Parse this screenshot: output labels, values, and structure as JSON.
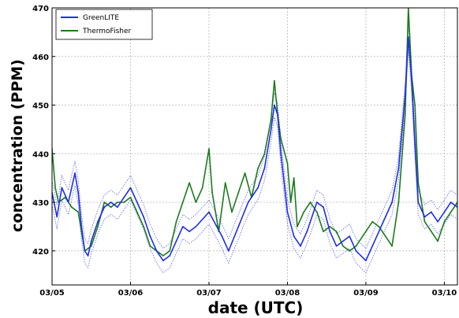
{
  "chart_data": {
    "type": "line",
    "title": "",
    "xlabel": "date (UTC)",
    "ylabel": "concentration (PPM)",
    "x_ticks": [
      "03/05",
      "03/06",
      "03/07",
      "03/08",
      "03/09",
      "03/10"
    ],
    "xlim": [
      "03/05 00:00",
      "03/10 04:00"
    ],
    "y_ticks": [
      420,
      430,
      440,
      450,
      460,
      470
    ],
    "ylim": [
      413,
      470
    ],
    "grid": true,
    "legend_position": "top-left",
    "series": [
      {
        "name": "GreenLITE",
        "color": "#1f2ee6",
        "line_style": "solid with dotted uncertainty band",
        "band_width_ppm": 2.5,
        "points": [
          [
            "03/05 00:00",
            432
          ],
          [
            "03/05 01:30",
            427
          ],
          [
            "03/05 03:00",
            433
          ],
          [
            "03/05 05:00",
            430
          ],
          [
            "03/05 07:00",
            436
          ],
          [
            "03/05 08:00",
            432
          ],
          [
            "03/05 09:00",
            425
          ],
          [
            "03/05 10:00",
            420
          ],
          [
            "03/05 11:00",
            419
          ],
          [
            "03/05 12:00",
            422
          ],
          [
            "03/05 14:00",
            426
          ],
          [
            "03/05 16:00",
            429
          ],
          [
            "03/05 18:00",
            430
          ],
          [
            "03/05 20:00",
            429
          ],
          [
            "03/05 22:00",
            431
          ],
          [
            "03/06 00:00",
            433
          ],
          [
            "03/06 02:00",
            430
          ],
          [
            "03/06 04:00",
            427
          ],
          [
            "03/06 06:00",
            423
          ],
          [
            "03/06 08:00",
            420
          ],
          [
            "03/06 10:00",
            418
          ],
          [
            "03/06 12:00",
            419
          ],
          [
            "03/06 14:00",
            422
          ],
          [
            "03/06 16:00",
            425
          ],
          [
            "03/06 18:00",
            424
          ],
          [
            "03/06 20:00",
            425
          ],
          [
            "03/07 00:00",
            428
          ],
          [
            "03/07 04:00",
            423
          ],
          [
            "03/07 06:00",
            420
          ],
          [
            "03/07 09:00",
            425
          ],
          [
            "03/07 12:00",
            430
          ],
          [
            "03/07 15:00",
            433
          ],
          [
            "03/07 17:00",
            437
          ],
          [
            "03/07 19:00",
            445
          ],
          [
            "03/07 20:00",
            450
          ],
          [
            "03/07 21:00",
            448
          ],
          [
            "03/07 22:00",
            440
          ],
          [
            "03/08 00:00",
            428
          ],
          [
            "03/08 02:00",
            423
          ],
          [
            "03/08 04:00",
            421
          ],
          [
            "03/08 06:00",
            424
          ],
          [
            "03/08 08:00",
            428
          ],
          [
            "03/08 09:00",
            430
          ],
          [
            "03/08 11:00",
            429
          ],
          [
            "03/08 13:00",
            424
          ],
          [
            "03/08 15:00",
            421
          ],
          [
            "03/08 17:00",
            422
          ],
          [
            "03/08 19:00",
            423
          ],
          [
            "03/08 21:00",
            420
          ],
          [
            "03/09 00:00",
            418
          ],
          [
            "03/09 02:00",
            421
          ],
          [
            "03/09 04:00",
            424
          ],
          [
            "03/09 06:00",
            427
          ],
          [
            "03/09 08:00",
            430
          ],
          [
            "03/09 10:00",
            437
          ],
          [
            "03/09 12:00",
            452
          ],
          [
            "03/09 13:00",
            464
          ],
          [
            "03/09 14:00",
            455
          ],
          [
            "03/09 15:00",
            442
          ],
          [
            "03/09 16:00",
            430
          ],
          [
            "03/09 18:00",
            427
          ],
          [
            "03/09 20:00",
            428
          ],
          [
            "03/09 22:00",
            426
          ],
          [
            "03/10 00:00",
            428
          ],
          [
            "03/10 02:00",
            430
          ],
          [
            "03/10 04:00",
            429
          ]
        ]
      },
      {
        "name": "ThermoFisher",
        "color": "#1d7a1d",
        "line_style": "solid",
        "points": [
          [
            "03/05 00:00",
            441
          ],
          [
            "03/05 01:00",
            433
          ],
          [
            "03/05 02:00",
            430
          ],
          [
            "03/05 04:00",
            431
          ],
          [
            "03/05 06:00",
            429
          ],
          [
            "03/05 08:00",
            428
          ],
          [
            "03/05 09:00",
            424
          ],
          [
            "03/05 10:00",
            420
          ],
          [
            "03/05 12:00",
            421
          ],
          [
            "03/05 14:00",
            425
          ],
          [
            "03/05 16:00",
            430
          ],
          [
            "03/05 18:00",
            429
          ],
          [
            "03/05 20:00",
            430
          ],
          [
            "03/05 22:00",
            430
          ],
          [
            "03/06 00:00",
            431
          ],
          [
            "03/06 02:00",
            428
          ],
          [
            "03/06 04:00",
            425
          ],
          [
            "03/06 06:00",
            421
          ],
          [
            "03/06 08:00",
            420
          ],
          [
            "03/06 10:00",
            419
          ],
          [
            "03/06 12:00",
            420
          ],
          [
            "03/06 14:00",
            426
          ],
          [
            "03/06 16:00",
            430
          ],
          [
            "03/06 18:00",
            434
          ],
          [
            "03/06 20:00",
            430
          ],
          [
            "03/06 22:00",
            433
          ],
          [
            "03/07 00:00",
            441
          ],
          [
            "03/07 01:00",
            432
          ],
          [
            "03/07 03:00",
            424
          ],
          [
            "03/07 05:00",
            434
          ],
          [
            "03/07 07:00",
            428
          ],
          [
            "03/07 09:00",
            432
          ],
          [
            "03/07 11:00",
            436
          ],
          [
            "03/07 13:00",
            431
          ],
          [
            "03/07 15:00",
            437
          ],
          [
            "03/07 17:00",
            440
          ],
          [
            "03/07 19:00",
            447
          ],
          [
            "03/07 20:00",
            455
          ],
          [
            "03/07 21:00",
            448
          ],
          [
            "03/07 22:00",
            443
          ],
          [
            "03/08 00:00",
            438
          ],
          [
            "03/08 01:00",
            430
          ],
          [
            "03/08 02:00",
            435
          ],
          [
            "03/08 03:00",
            425
          ],
          [
            "03/08 05:00",
            428
          ],
          [
            "03/08 07:00",
            430
          ],
          [
            "03/08 09:00",
            428
          ],
          [
            "03/08 11:00",
            424
          ],
          [
            "03/08 13:00",
            425
          ],
          [
            "03/08 15:00",
            424
          ],
          [
            "03/08 17:00",
            421
          ],
          [
            "03/08 19:00",
            420
          ],
          [
            "03/08 21:00",
            421
          ],
          [
            "03/09 00:00",
            424
          ],
          [
            "03/09 02:00",
            426
          ],
          [
            "03/09 04:00",
            425
          ],
          [
            "03/09 06:00",
            423
          ],
          [
            "03/09 08:00",
            421
          ],
          [
            "03/09 10:00",
            430
          ],
          [
            "03/09 12:00",
            448
          ],
          [
            "03/09 13:00",
            470
          ],
          [
            "03/09 14:00",
            456
          ],
          [
            "03/09 15:00",
            450
          ],
          [
            "03/09 16:00",
            434
          ],
          [
            "03/09 18:00",
            426
          ],
          [
            "03/09 20:00",
            424
          ],
          [
            "03/09 22:00",
            422
          ],
          [
            "03/10 00:00",
            426
          ],
          [
            "03/10 02:00",
            428
          ],
          [
            "03/10 04:00",
            430
          ]
        ]
      }
    ]
  }
}
